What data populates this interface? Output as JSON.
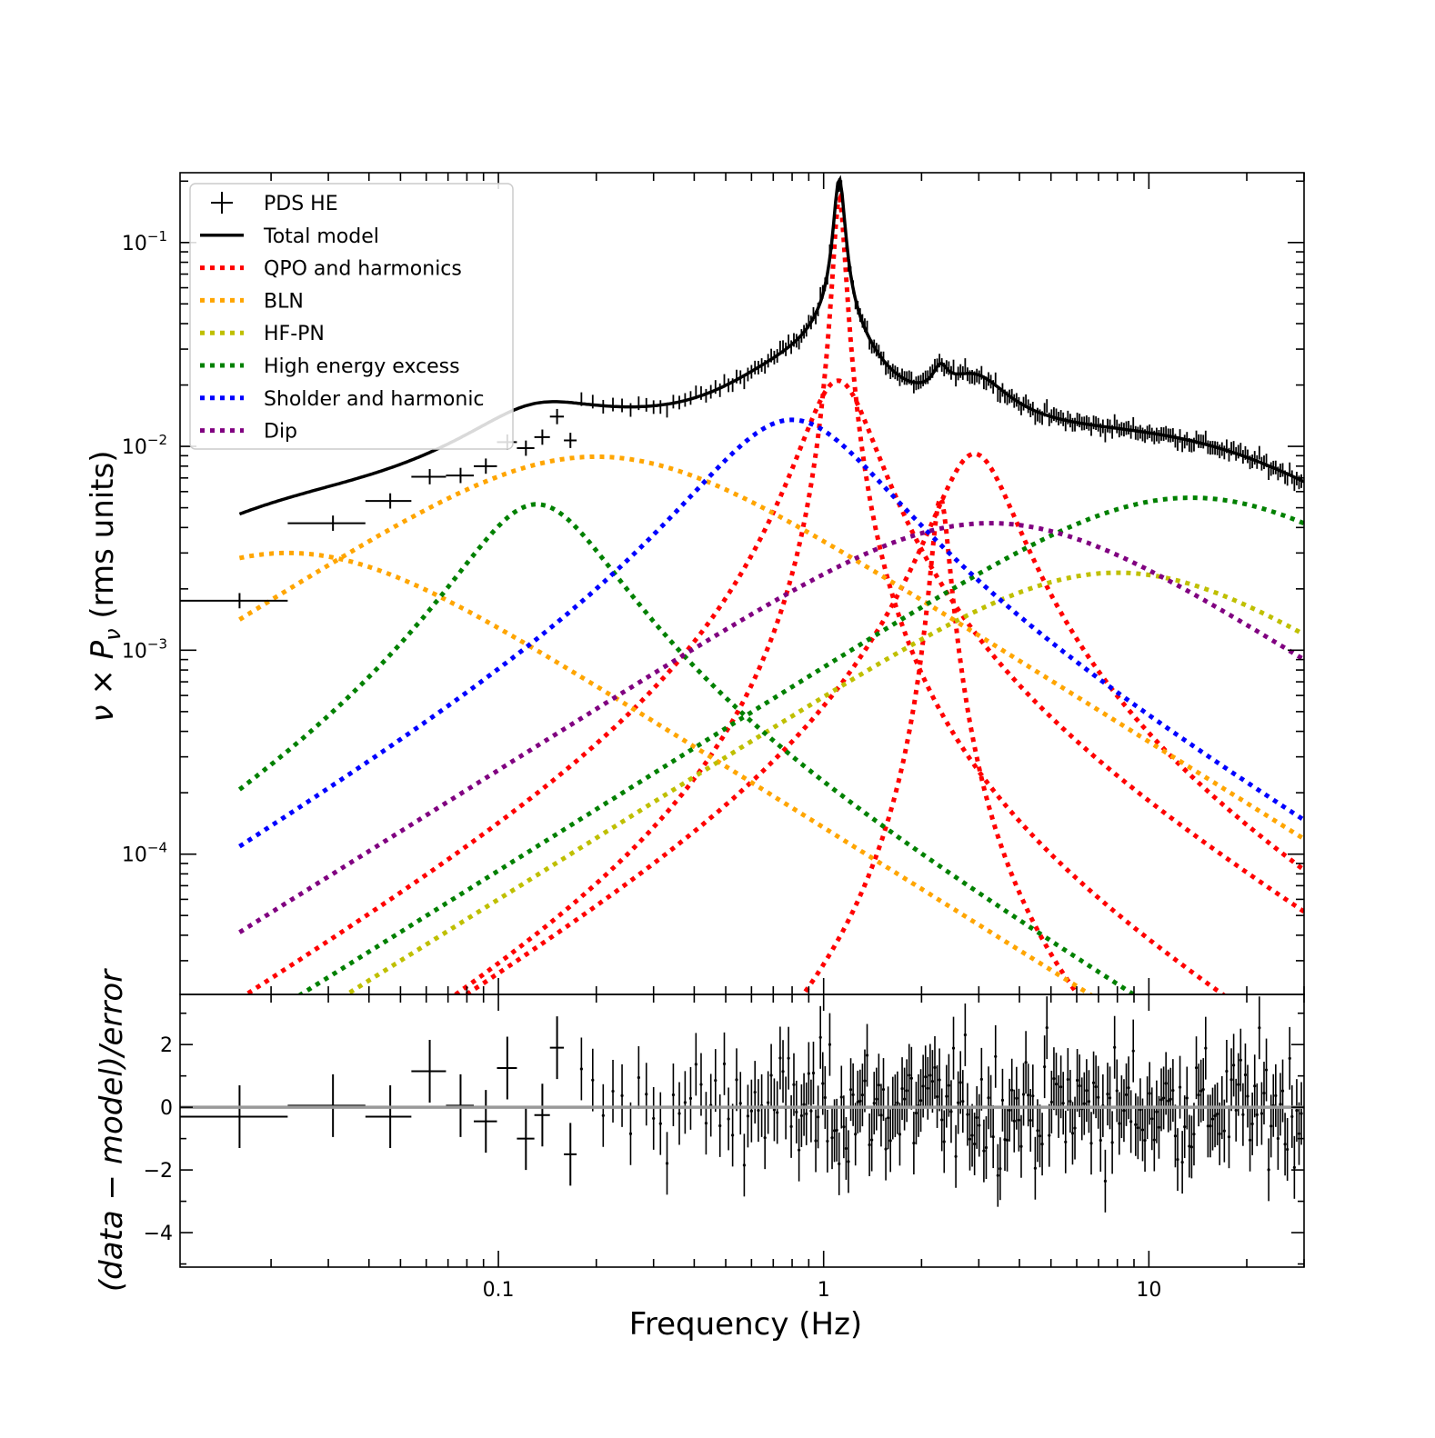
{
  "chart_data": [
    {
      "type": "line",
      "panel": "top",
      "xlabel": "",
      "ylabel": "ν × P_ν (rms units)",
      "ylabel_parts": {
        "nu": "ν",
        "times": " × ",
        "P": "P",
        "sub": "ν",
        "rest": " (rms units)"
      },
      "x_scale": "log",
      "y_scale": "log",
      "xlim": [
        0.0105,
        30
      ],
      "ylim": [
        2.05e-05,
        0.22
      ],
      "y_ticks": [
        {
          "value": 0.1,
          "base": "10",
          "exp": "−1"
        },
        {
          "value": 0.01,
          "base": "10",
          "exp": "−2"
        },
        {
          "value": 0.001,
          "base": "10",
          "exp": "−3"
        },
        {
          "value": 0.0001,
          "base": "10",
          "exp": "−4"
        }
      ],
      "legend_position": "upper-left",
      "legend": [
        {
          "label": "PDS HE",
          "style": "errorbar",
          "color": "#000000"
        },
        {
          "label": "Total model",
          "style": "solid",
          "color": "#000000"
        },
        {
          "label": "QPO and harmonics",
          "style": "dotted",
          "color": "#ff0000"
        },
        {
          "label": "BLN",
          "style": "dotted",
          "color": "#ffa500"
        },
        {
          "label": "HF-PN",
          "style": "dotted",
          "color": "#bfbf00"
        },
        {
          "label": "High energy excess",
          "style": "dotted",
          "color": "#008000"
        },
        {
          "label": "Sholder and harmonic",
          "style": "dotted",
          "color": "#0000ff"
        },
        {
          "label": "Dip",
          "style": "dotted",
          "color": "#800080"
        }
      ],
      "components": [
        {
          "group": "QPO and harmonics",
          "color": "#ff0000",
          "peak_freq": 1.12,
          "peak": 0.16,
          "q": 6,
          "gamma": 0.09
        },
        {
          "group": "QPO and harmonics",
          "color": "#ff0000",
          "peak_freq": 2.3,
          "peak": 0.0055,
          "q": 4,
          "gamma": 0.28
        },
        {
          "group": "QPO and harmonics",
          "color": "#ff0000",
          "peak_freq": 3.3,
          "peak": 0.0092,
          "q": 0.8,
          "gamma": 1.6
        },
        {
          "group": "QPO and harmonics",
          "color": "#ff0000",
          "peak_freq": 1.2,
          "peak": 0.021,
          "q": 1.0,
          "gamma": 0.55
        },
        {
          "group": "BLN",
          "color": "#ffa500",
          "peak_freq": 0.045,
          "peak": 0.003,
          "q": 0,
          "gamma": 0.045
        },
        {
          "group": "BLN",
          "color": "#ffa500",
          "peak_freq": 0.4,
          "peak": 0.0089,
          "q": 0,
          "gamma": 0.4
        },
        {
          "group": "HF-PN",
          "color": "#bfbf00",
          "peak_freq": 16,
          "peak": 0.0024,
          "q": 0,
          "gamma": 16
        },
        {
          "group": "High energy excess",
          "color": "#008000",
          "peak_freq": 0.14,
          "peak": 0.0052,
          "q": 0.7,
          "gamma": 0.13
        },
        {
          "group": "High energy excess",
          "color": "#008000",
          "peak_freq": 27,
          "peak": 0.0056,
          "q": 0,
          "gamma": 27
        },
        {
          "group": "Sholder and harmonic",
          "color": "#0000ff",
          "peak_freq": 1.25,
          "peak": 0.0135,
          "q": 0.3,
          "gamma": 0.95
        },
        {
          "group": "Dip",
          "color": "#800080",
          "peak_freq": 6.5,
          "peak": 0.0042,
          "q": 0,
          "gamma": 6.5
        }
      ],
      "data_points": [
        {
          "x": 0.016,
          "x_lo": 0.0105,
          "x_hi": 0.0225,
          "y": 0.00175
        },
        {
          "x": 0.031,
          "x_lo": 0.0225,
          "x_hi": 0.039,
          "y": 0.0042
        },
        {
          "x": 0.0465,
          "x_lo": 0.039,
          "x_hi": 0.054,
          "y": 0.0054
        },
        {
          "x": 0.0615,
          "x_lo": 0.054,
          "x_hi": 0.069,
          "y": 0.0071
        },
        {
          "x": 0.0765,
          "x_lo": 0.069,
          "x_hi": 0.084,
          "y": 0.0072
        },
        {
          "x": 0.0915,
          "x_lo": 0.084,
          "x_hi": 0.099,
          "y": 0.008
        },
        {
          "x": 0.1065,
          "x_lo": 0.099,
          "x_hi": 0.114,
          "y": 0.0105
        },
        {
          "x": 0.1215,
          "x_lo": 0.114,
          "x_hi": 0.129,
          "y": 0.0098
        },
        {
          "x": 0.1365,
          "x_lo": 0.129,
          "x_hi": 0.144,
          "y": 0.0111
        },
        {
          "x": 0.1515,
          "x_lo": 0.144,
          "x_hi": 0.159,
          "y": 0.014
        },
        {
          "x": 0.1665,
          "x_lo": 0.159,
          "x_hi": 0.174,
          "y": 0.0107
        }
      ]
    },
    {
      "type": "scatter",
      "panel": "bottom",
      "xlabel": "Frequency (Hz)",
      "ylabel": "(data − model)/error",
      "x_scale": "log",
      "xlim": [
        0.0105,
        30
      ],
      "ylim": [
        -5.1,
        3.6
      ],
      "zero_line_color": "#999999",
      "x_ticks": [
        {
          "value": 0.1,
          "label": "0.1"
        },
        {
          "value": 1,
          "label": "1"
        },
        {
          "value": 10,
          "label": "10"
        }
      ],
      "y_ticks": [
        {
          "value": 2,
          "label": "2"
        },
        {
          "value": 0,
          "label": "0"
        },
        {
          "value": -2,
          "label": "−2"
        },
        {
          "value": -4,
          "label": "−4"
        }
      ],
      "residuals_first_bins": [
        {
          "x": 0.016,
          "y": -0.3
        },
        {
          "x": 0.031,
          "y": 0.05
        },
        {
          "x": 0.0465,
          "y": -0.3
        },
        {
          "x": 0.0615,
          "y": 1.15
        },
        {
          "x": 0.0765,
          "y": 0.05
        },
        {
          "x": 0.0915,
          "y": -0.45
        },
        {
          "x": 0.1065,
          "y": 1.25
        },
        {
          "x": 0.1215,
          "y": -1.0
        },
        {
          "x": 0.1365,
          "y": -0.25
        },
        {
          "x": 0.1515,
          "y": 1.9
        },
        {
          "x": 0.1665,
          "y": -1.5
        }
      ]
    }
  ]
}
